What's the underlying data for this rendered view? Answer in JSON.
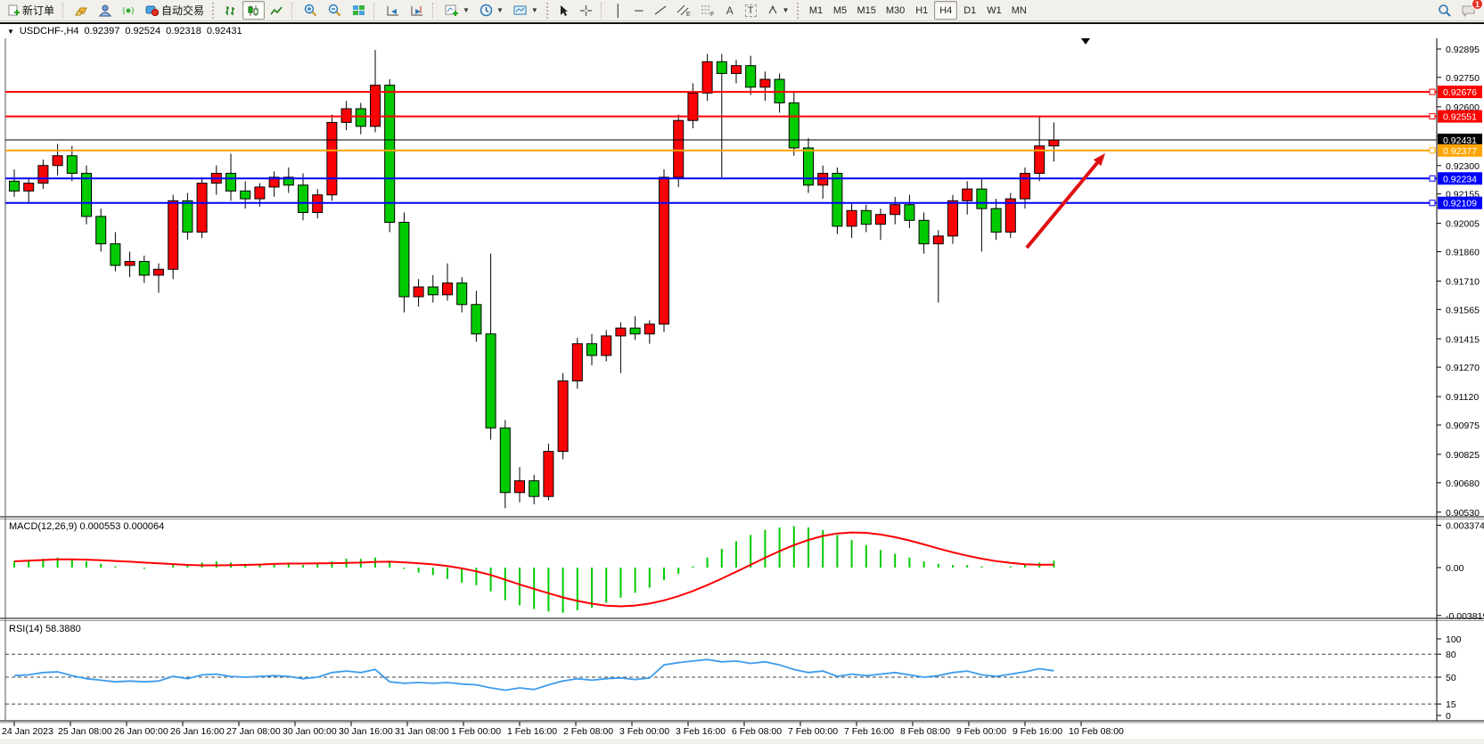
{
  "toolbar": {
    "new_order_label": "新订单",
    "auto_trading_label": "自动交易",
    "timeframes": [
      "M1",
      "M5",
      "M15",
      "M30",
      "H1",
      "H4",
      "D1",
      "W1",
      "MN"
    ],
    "active_timeframe": "H4",
    "text_tool_label": "A",
    "label_tool_label": "T",
    "channel_tool_label": "E",
    "fibo_tool_label": "F"
  },
  "notifications": {
    "badge_count": "1"
  },
  "title_bar": {
    "symbol_period": "USDCHF-,H4",
    "open": "0.92397",
    "high": "0.92524",
    "low": "0.92318",
    "close": "0.92431"
  },
  "indicator_labels": {
    "macd": "MACD(12,26,9) 0.000553 0.000064",
    "rsi": "RSI(14) 58.3880"
  },
  "colors": {
    "bull": "#fb0207",
    "bear": "#00cb00",
    "wick": "#000000",
    "res_line": "#fd0000",
    "pivot_line": "#ffa500",
    "sup_line": "#0000fe",
    "bid_line": "#000000",
    "macd_hist": "#00cb00",
    "macd_signal": "#fd0000",
    "rsi_line": "#3e9beb",
    "arrow": "#e01010",
    "badge_text": "#ffffff"
  },
  "chart_data": [
    {
      "type": "candlestick",
      "title": "USDCHF-,H4",
      "xlabel": "",
      "ylabel": "",
      "ylim": [
        0.90511,
        0.92945
      ],
      "grid": false,
      "y_ticks": [
        "0.92895",
        "0.92750",
        "0.92600",
        "0.92450",
        "0.92300",
        "0.92155",
        "0.92005",
        "0.91860",
        "0.91710",
        "0.91565",
        "0.91415",
        "0.91270",
        "0.91120",
        "0.90975",
        "0.90825",
        "0.90680",
        "0.90530"
      ],
      "x_labels": [
        "24 Jan 2023",
        "25 Jan 08:00",
        "26 Jan 00:00",
        "26 Jan 16:00",
        "27 Jan 08:00",
        "30 Jan 00:00",
        "30 Jan 16:00",
        "31 Jan 08:00",
        "1 Feb 00:00",
        "1 Feb 16:00",
        "2 Feb 08:00",
        "3 Feb 00:00",
        "3 Feb 16:00",
        "6 Feb 08:00",
        "7 Feb 00:00",
        "7 Feb 16:00",
        "8 Feb 08:00",
        "9 Feb 00:00",
        "9 Feb 16:00",
        "10 Feb 08:00"
      ],
      "hlines": [
        {
          "price": 0.92676,
          "label": "0.92676",
          "color": "#fd0000",
          "w": 2
        },
        {
          "price": 0.92551,
          "label": "0.92551",
          "color": "#fd0000",
          "w": 2
        },
        {
          "price": 0.92431,
          "label": "0.92431",
          "color": "#000000",
          "w": 1
        },
        {
          "price": 0.92377,
          "label": "0.92377",
          "color": "#ffa500",
          "w": 2
        },
        {
          "price": 0.92234,
          "label": "0.92234",
          "color": "#0000fe",
          "w": 2
        },
        {
          "price": 0.92109,
          "label": "0.92109",
          "color": "#0000fe",
          "w": 2
        }
      ],
      "candles_ohlc": [
        [
          0.9222,
          0.9228,
          0.9214,
          0.9217
        ],
        [
          0.9217,
          0.9224,
          0.9211,
          0.9221
        ],
        [
          0.9221,
          0.9233,
          0.9218,
          0.923
        ],
        [
          0.923,
          0.9241,
          0.9225,
          0.9235
        ],
        [
          0.9235,
          0.924,
          0.9222,
          0.9226
        ],
        [
          0.9226,
          0.923,
          0.92,
          0.9204
        ],
        [
          0.9204,
          0.9208,
          0.9186,
          0.919
        ],
        [
          0.919,
          0.9196,
          0.9176,
          0.9179
        ],
        [
          0.9179,
          0.9186,
          0.9173,
          0.9181
        ],
        [
          0.9181,
          0.9184,
          0.917,
          0.9174
        ],
        [
          0.9174,
          0.918,
          0.9165,
          0.9177
        ],
        [
          0.9177,
          0.9215,
          0.9172,
          0.9212
        ],
        [
          0.9212,
          0.9216,
          0.9192,
          0.9196
        ],
        [
          0.9196,
          0.9224,
          0.9193,
          0.9221
        ],
        [
          0.9221,
          0.923,
          0.9215,
          0.9226
        ],
        [
          0.9226,
          0.9236,
          0.9212,
          0.9217
        ],
        [
          0.9217,
          0.9222,
          0.9208,
          0.9213
        ],
        [
          0.9213,
          0.9221,
          0.9209,
          0.9219
        ],
        [
          0.9219,
          0.9227,
          0.9214,
          0.9224
        ],
        [
          0.9224,
          0.9229,
          0.9216,
          0.922
        ],
        [
          0.922,
          0.9226,
          0.9202,
          0.9206
        ],
        [
          0.9206,
          0.9218,
          0.9203,
          0.9215
        ],
        [
          0.9215,
          0.9256,
          0.9212,
          0.9252
        ],
        [
          0.9252,
          0.9263,
          0.9248,
          0.9259
        ],
        [
          0.9259,
          0.9262,
          0.9246,
          0.925
        ],
        [
          0.925,
          0.9289,
          0.9247,
          0.9271
        ],
        [
          0.9271,
          0.9274,
          0.9196,
          0.9201
        ],
        [
          0.9201,
          0.9206,
          0.9155,
          0.9163
        ],
        [
          0.9163,
          0.9172,
          0.9158,
          0.9168
        ],
        [
          0.9168,
          0.9174,
          0.916,
          0.9164
        ],
        [
          0.9164,
          0.918,
          0.9161,
          0.917
        ],
        [
          0.917,
          0.9173,
          0.9155,
          0.9159
        ],
        [
          0.9159,
          0.9166,
          0.914,
          0.9144
        ],
        [
          0.9144,
          0.9185,
          0.909,
          0.9096
        ],
        [
          0.9096,
          0.91,
          0.9055,
          0.9063
        ],
        [
          0.9063,
          0.9076,
          0.9058,
          0.9069
        ],
        [
          0.9069,
          0.9072,
          0.9057,
          0.9061
        ],
        [
          0.9061,
          0.9088,
          0.9059,
          0.9084
        ],
        [
          0.9084,
          0.9124,
          0.908,
          0.912
        ],
        [
          0.912,
          0.9142,
          0.9116,
          0.9139
        ],
        [
          0.9139,
          0.9144,
          0.9128,
          0.9133
        ],
        [
          0.9133,
          0.9146,
          0.913,
          0.9143
        ],
        [
          0.9143,
          0.915,
          0.9124,
          0.9147
        ],
        [
          0.9147,
          0.9153,
          0.9141,
          0.9144
        ],
        [
          0.9144,
          0.9151,
          0.9139,
          0.9149
        ],
        [
          0.9149,
          0.9228,
          0.9145,
          0.9224
        ],
        [
          0.9224,
          0.9256,
          0.9219,
          0.9253
        ],
        [
          0.9253,
          0.9272,
          0.9249,
          0.9267
        ],
        [
          0.9267,
          0.9287,
          0.9263,
          0.9283
        ],
        [
          0.9283,
          0.9287,
          0.9224,
          0.9277
        ],
        [
          0.9277,
          0.9284,
          0.9272,
          0.9281
        ],
        [
          0.9281,
          0.9286,
          0.9266,
          0.927
        ],
        [
          0.927,
          0.9278,
          0.9263,
          0.9274
        ],
        [
          0.9274,
          0.9277,
          0.9257,
          0.9262
        ],
        [
          0.9262,
          0.9268,
          0.9235,
          0.9239
        ],
        [
          0.9239,
          0.9244,
          0.9216,
          0.922
        ],
        [
          0.922,
          0.923,
          0.9213,
          0.9226
        ],
        [
          0.9226,
          0.9229,
          0.9195,
          0.9199
        ],
        [
          0.9199,
          0.9211,
          0.9193,
          0.9207
        ],
        [
          0.9207,
          0.921,
          0.9196,
          0.92
        ],
        [
          0.92,
          0.9208,
          0.9192,
          0.9205
        ],
        [
          0.9205,
          0.9214,
          0.92,
          0.921
        ],
        [
          0.921,
          0.9215,
          0.9198,
          0.9202
        ],
        [
          0.9202,
          0.9206,
          0.9185,
          0.919
        ],
        [
          0.919,
          0.9197,
          0.916,
          0.9194
        ],
        [
          0.9194,
          0.9215,
          0.919,
          0.9212
        ],
        [
          0.9212,
          0.9222,
          0.9205,
          0.9218
        ],
        [
          0.9218,
          0.9223,
          0.9186,
          0.9208
        ],
        [
          0.9208,
          0.9213,
          0.9192,
          0.9196
        ],
        [
          0.9196,
          0.9216,
          0.9193,
          0.9213
        ],
        [
          0.9213,
          0.9229,
          0.9208,
          0.9226
        ],
        [
          0.9226,
          0.9255,
          0.9222,
          0.924
        ],
        [
          0.924,
          0.9252,
          0.9232,
          0.9243
        ]
      ],
      "annotations": [
        {
          "type": "arrow",
          "from": [
            1152,
            278
          ],
          "to": [
            1240,
            172
          ],
          "color": "#e01010"
        },
        {
          "type": "shift-marker",
          "x": 1218
        }
      ]
    },
    {
      "type": "bar",
      "title": "MACD(12,26,9)",
      "values_label": [
        "0.000553",
        "0.000064"
      ],
      "y_ticks": [
        {
          "v": 0.003374,
          "label": "0.003374"
        },
        {
          "v": 0,
          "label": "0.00"
        },
        {
          "v": -0.003819,
          "label": "-0.003819"
        }
      ],
      "signal_period": 9,
      "values": [
        0.0005,
        0.0006,
        0.0007,
        0.0008,
        0.0007,
        0.0005,
        0.0003,
        0.0001,
        0.0,
        -0.0001,
        0.0,
        0.0002,
        0.0002,
        0.0004,
        0.0005,
        0.0004,
        0.0003,
        0.0003,
        0.0003,
        0.0003,
        0.0002,
        0.0003,
        0.0005,
        0.0007,
        0.0007,
        0.0008,
        0.0004,
        -0.0001,
        -0.0004,
        -0.0006,
        -0.0009,
        -0.0012,
        -0.0014,
        -0.0019,
        -0.0026,
        -0.003,
        -0.0033,
        -0.0035,
        -0.0036,
        -0.0034,
        -0.0032,
        -0.0028,
        -0.0024,
        -0.002,
        -0.0016,
        -0.001,
        -0.0005,
        0.0001,
        0.0008,
        0.0015,
        0.0021,
        0.0026,
        0.003,
        0.0032,
        0.0033,
        0.0032,
        0.003,
        0.0026,
        0.0022,
        0.0018,
        0.0014,
        0.0011,
        0.0008,
        0.0005,
        0.0003,
        0.0002,
        0.0002,
        0.0001,
        0.0,
        0.0001,
        0.0002,
        0.0004,
        0.00055
      ]
    },
    {
      "type": "line",
      "title": "RSI(14)",
      "current_value": "58.3880",
      "range": [
        0,
        100
      ],
      "y_ticks": [
        {
          "v": 100,
          "label": "100"
        },
        {
          "v": 80,
          "label": "80"
        },
        {
          "v": 50,
          "label": "50"
        },
        {
          "v": 15,
          "label": "15"
        },
        {
          "v": 0,
          "label": "0"
        }
      ],
      "dashed_levels": [
        80,
        50,
        15
      ],
      "values": [
        52,
        53,
        56,
        57,
        52,
        48,
        46,
        44,
        45,
        44,
        45,
        51,
        48,
        53,
        54,
        51,
        50,
        51,
        52,
        51,
        48,
        50,
        56,
        58,
        56,
        60,
        44,
        42,
        43,
        42,
        43,
        41,
        40,
        36,
        33,
        36,
        34,
        40,
        45,
        48,
        46,
        48,
        49,
        47,
        49,
        66,
        69,
        71,
        73,
        70,
        71,
        68,
        70,
        66,
        60,
        56,
        58,
        51,
        54,
        52,
        54,
        56,
        53,
        50,
        52,
        56,
        58,
        53,
        51,
        54,
        57,
        61,
        58.39
      ]
    }
  ]
}
